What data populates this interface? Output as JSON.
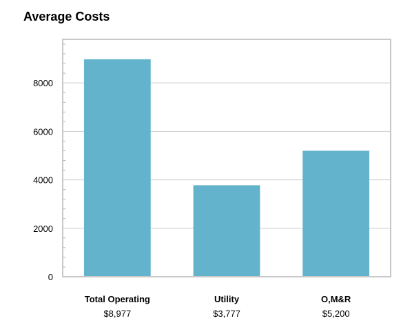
{
  "chart_data": {
    "type": "bar",
    "title": "Average Costs",
    "xlabel": "",
    "ylabel": "",
    "categories": [
      "Total Operating",
      "Utility",
      "O,M&R"
    ],
    "values": [
      8977,
      3777,
      5200
    ],
    "value_labels": [
      "$8,977",
      "$3,777",
      "$5,200"
    ],
    "y_ticks": [
      0,
      2000,
      4000,
      6000,
      8000
    ],
    "ylim": [
      0,
      9800
    ],
    "grid": true,
    "legend": "none",
    "colors": {
      "bar": "#62b3cb",
      "plot_border": "#c8c8c8",
      "grid": "#cccccc",
      "text": "#000000"
    }
  }
}
